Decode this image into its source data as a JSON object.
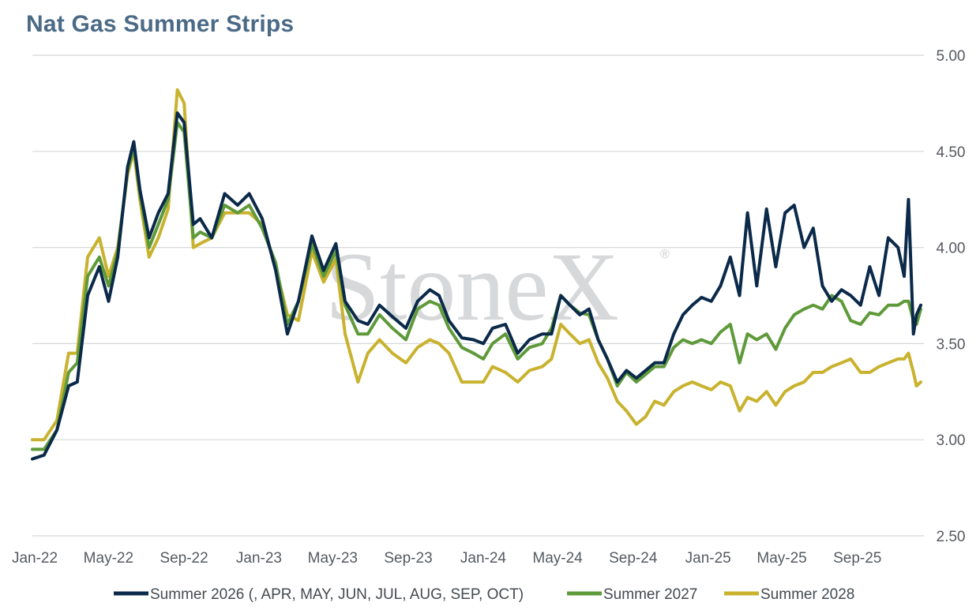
{
  "title": "Nat Gas Summer Strips",
  "watermark": "StoneX",
  "watermark_mark": "®",
  "colors": {
    "grid": "#d6d8db",
    "title": "#4a6a86",
    "s2026": "#0b2a4a",
    "s2027": "#5f9a3a",
    "s2028": "#c8b22e"
  },
  "chart_data": {
    "type": "line",
    "title": "Nat Gas Summer Strips",
    "xlabel": "",
    "ylabel": "",
    "ylim": [
      2.5,
      5.0
    ],
    "y_axis_side": "right",
    "y_ticks": [
      "2.50",
      "3.00",
      "3.50",
      "4.00",
      "4.50",
      "5.00"
    ],
    "x_ticks": [
      "Jan-22",
      "May-22",
      "Sep-22",
      "Jan-23",
      "May-23",
      "Sep-23",
      "Jan-24",
      "May-24",
      "Sep-24",
      "Jan-25",
      "May-25",
      "Sep-25"
    ],
    "x_range": [
      "2022-01-01",
      "2025-12-17"
    ],
    "grid": true,
    "legend_position": "bottom",
    "x": [
      "2022-01-01",
      "2022-01-20",
      "2022-02-10",
      "2022-03-01",
      "2022-03-15",
      "2022-04-01",
      "2022-04-20",
      "2022-05-05",
      "2022-05-20",
      "2022-06-05",
      "2022-06-15",
      "2022-06-25",
      "2022-07-10",
      "2022-07-25",
      "2022-08-10",
      "2022-08-25",
      "2022-09-05",
      "2022-09-20",
      "2022-10-01",
      "2022-10-20",
      "2022-11-10",
      "2022-12-01",
      "2022-12-20",
      "2023-01-10",
      "2023-02-01",
      "2023-02-20",
      "2023-03-10",
      "2023-04-01",
      "2023-04-20",
      "2023-05-10",
      "2023-05-25",
      "2023-06-15",
      "2023-07-01",
      "2023-07-20",
      "2023-08-10",
      "2023-09-01",
      "2023-09-20",
      "2023-10-10",
      "2023-10-25",
      "2023-11-10",
      "2023-12-01",
      "2023-12-20",
      "2024-01-05",
      "2024-01-20",
      "2024-02-10",
      "2024-03-01",
      "2024-03-20",
      "2024-04-10",
      "2024-04-25",
      "2024-05-10",
      "2024-05-25",
      "2024-06-10",
      "2024-06-25",
      "2024-07-10",
      "2024-07-25",
      "2024-08-10",
      "2024-08-25",
      "2024-09-10",
      "2024-09-25",
      "2024-10-10",
      "2024-10-25",
      "2024-11-10",
      "2024-11-25",
      "2024-12-10",
      "2024-12-25",
      "2025-01-10",
      "2025-01-25",
      "2025-02-10",
      "2025-02-25",
      "2025-03-10",
      "2025-03-25",
      "2025-04-10",
      "2025-04-25",
      "2025-05-10",
      "2025-05-25",
      "2025-06-10",
      "2025-06-25",
      "2025-07-10",
      "2025-07-25",
      "2025-08-10",
      "2025-08-25",
      "2025-09-10",
      "2025-09-25",
      "2025-10-10",
      "2025-10-25",
      "2025-11-10",
      "2025-11-20",
      "2025-11-27",
      "2025-12-05",
      "2025-12-10",
      "2025-12-17"
    ],
    "series": [
      {
        "name": "Summer 2026 (, APR, MAY, JUN, JUL, AUG, SEP, OCT)",
        "values": [
          2.9,
          2.92,
          3.05,
          3.28,
          3.3,
          3.75,
          3.9,
          3.72,
          3.95,
          4.42,
          4.55,
          4.3,
          4.05,
          4.18,
          4.28,
          4.7,
          4.65,
          4.12,
          4.15,
          4.05,
          4.28,
          4.22,
          4.28,
          4.15,
          3.88,
          3.55,
          3.72,
          4.06,
          3.88,
          4.02,
          3.72,
          3.62,
          3.6,
          3.7,
          3.64,
          3.58,
          3.72,
          3.78,
          3.75,
          3.62,
          3.53,
          3.52,
          3.5,
          3.58,
          3.6,
          3.45,
          3.52,
          3.55,
          3.55,
          3.75,
          3.7,
          3.65,
          3.68,
          3.52,
          3.42,
          3.3,
          3.36,
          3.32,
          3.36,
          3.4,
          3.4,
          3.55,
          3.65,
          3.7,
          3.74,
          3.72,
          3.8,
          3.95,
          3.75,
          4.18,
          3.8,
          4.2,
          3.9,
          4.18,
          4.22,
          4.0,
          4.1,
          3.8,
          3.72,
          3.78,
          3.75,
          3.7,
          3.9,
          3.75,
          4.05,
          4.0,
          3.85,
          4.25,
          3.55,
          3.65,
          3.7
        ]
      },
      {
        "name": "Summer 2027",
        "values": [
          2.95,
          2.95,
          3.05,
          3.35,
          3.4,
          3.85,
          3.95,
          3.8,
          3.98,
          4.4,
          4.52,
          4.28,
          4.0,
          4.12,
          4.25,
          4.65,
          4.6,
          4.05,
          4.08,
          4.05,
          4.22,
          4.18,
          4.22,
          4.1,
          3.92,
          3.6,
          3.72,
          4.02,
          3.85,
          3.98,
          3.7,
          3.55,
          3.55,
          3.65,
          3.58,
          3.52,
          3.68,
          3.72,
          3.7,
          3.58,
          3.48,
          3.45,
          3.42,
          3.5,
          3.55,
          3.42,
          3.48,
          3.5,
          3.58,
          3.75,
          3.7,
          3.66,
          3.65,
          3.52,
          3.42,
          3.28,
          3.35,
          3.3,
          3.34,
          3.38,
          3.38,
          3.48,
          3.52,
          3.5,
          3.52,
          3.5,
          3.56,
          3.6,
          3.4,
          3.55,
          3.52,
          3.55,
          3.47,
          3.58,
          3.65,
          3.68,
          3.7,
          3.68,
          3.75,
          3.72,
          3.62,
          3.6,
          3.66,
          3.65,
          3.7,
          3.7,
          3.72,
          3.72,
          3.62,
          3.6,
          3.68
        ]
      },
      {
        "name": "Summer 2028",
        "values": [
          3.0,
          3.0,
          3.1,
          3.45,
          3.45,
          3.95,
          4.05,
          3.85,
          4.0,
          4.38,
          4.5,
          4.25,
          3.95,
          4.05,
          4.2,
          4.82,
          4.75,
          4.0,
          4.02,
          4.05,
          4.18,
          4.18,
          4.18,
          4.12,
          3.9,
          3.65,
          3.62,
          3.98,
          3.82,
          3.94,
          3.55,
          3.3,
          3.45,
          3.52,
          3.45,
          3.4,
          3.48,
          3.52,
          3.5,
          3.45,
          3.3,
          3.3,
          3.3,
          3.38,
          3.35,
          3.3,
          3.36,
          3.38,
          3.42,
          3.6,
          3.55,
          3.5,
          3.52,
          3.4,
          3.32,
          3.2,
          3.15,
          3.08,
          3.12,
          3.2,
          3.18,
          3.25,
          3.28,
          3.3,
          3.28,
          3.26,
          3.3,
          3.28,
          3.15,
          3.22,
          3.2,
          3.25,
          3.18,
          3.25,
          3.28,
          3.3,
          3.35,
          3.35,
          3.38,
          3.4,
          3.42,
          3.35,
          3.35,
          3.38,
          3.4,
          3.42,
          3.42,
          3.45,
          3.35,
          3.28,
          3.3
        ]
      }
    ]
  }
}
